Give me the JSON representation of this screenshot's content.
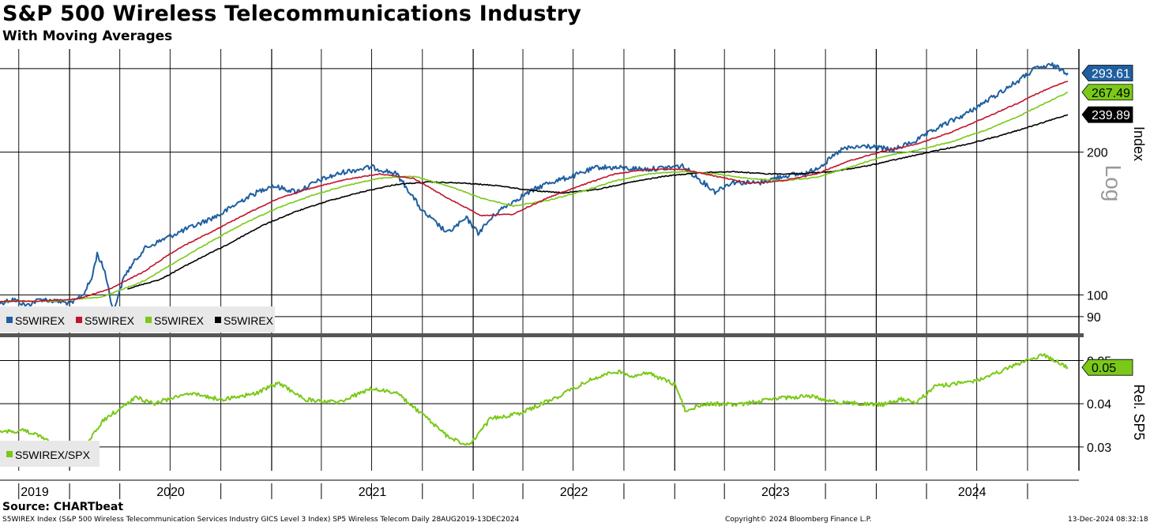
{
  "header": {
    "title": "S&P 500 Wireless Telecommunications Industry",
    "subtitle": "With Moving Averages"
  },
  "footer": {
    "source": "Source: CHARTbeat",
    "description": "S5WIREX Index (S&P 500 Wireless Telecommunication Services Industry GICS Level 3 Index) SP5 Wireless Telecom  Daily 28AUG2019-13DEC2024",
    "copyright": "Copyright© 2024 Bloomberg Finance L.P.",
    "timestamp": "13-Dec-2024 08:32:18"
  },
  "colors": {
    "price": "#1f5fa0",
    "ma_red": "#c0142c",
    "ma_green": "#7ac918",
    "ma_black": "#000000",
    "relative": "#7ac918"
  },
  "chart_data": [
    {
      "type": "line",
      "panel": "upper",
      "axis_label": "Index",
      "scale_label": "Log",
      "y_scale": "log",
      "ylim": [
        83,
        330
      ],
      "y_ticks": [
        90,
        100,
        200
      ],
      "x_ticks": [
        "2019",
        "2020",
        "2021",
        "2022",
        "2023",
        "2024"
      ],
      "x_range": [
        "2019-08-28",
        "2024-12-13"
      ],
      "grid": true,
      "legend": "bottom-left",
      "value_labels": [
        {
          "value": "293.61",
          "series": 0
        },
        {
          "value": "267.49",
          "series": 2
        },
        {
          "value": "239.89",
          "series": 3
        }
      ],
      "series": [
        {
          "name": "S5WIREX",
          "color_key": "price",
          "points": [
            [
              "2019-08-28",
              96
            ],
            [
              "2019-09-20",
              98
            ],
            [
              "2019-10-15",
              95
            ],
            [
              "2019-11-10",
              98
            ],
            [
              "2019-12-05",
              97
            ],
            [
              "2020-01-05",
              96
            ],
            [
              "2020-01-25",
              100
            ],
            [
              "2020-02-10",
              108
            ],
            [
              "2020-02-20",
              122
            ],
            [
              "2020-03-05",
              112
            ],
            [
              "2020-03-20",
              92
            ],
            [
              "2020-04-10",
              110
            ],
            [
              "2020-05-15",
              125
            ],
            [
              "2020-07-01",
              133
            ],
            [
              "2020-08-15",
              140
            ],
            [
              "2020-10-01",
              148
            ],
            [
              "2020-11-15",
              160
            ],
            [
              "2020-12-31",
              170
            ],
            [
              "2021-02-15",
              165
            ],
            [
              "2021-04-01",
              175
            ],
            [
              "2021-05-15",
              182
            ],
            [
              "2021-07-01",
              186
            ],
            [
              "2021-08-15",
              180
            ],
            [
              "2021-10-01",
              150
            ],
            [
              "2021-11-15",
              135
            ],
            [
              "2021-12-20",
              145
            ],
            [
              "2022-01-10",
              135
            ],
            [
              "2022-02-15",
              150
            ],
            [
              "2022-04-01",
              162
            ],
            [
              "2022-05-15",
              172
            ],
            [
              "2022-07-01",
              178
            ],
            [
              "2022-08-15",
              186
            ],
            [
              "2022-10-01",
              185
            ],
            [
              "2022-11-15",
              184
            ],
            [
              "2023-01-15",
              187
            ],
            [
              "2023-02-15",
              175
            ],
            [
              "2023-03-15",
              165
            ],
            [
              "2023-04-15",
              173
            ],
            [
              "2023-06-01",
              172
            ],
            [
              "2023-07-15",
              178
            ],
            [
              "2023-09-01",
              181
            ],
            [
              "2023-10-01",
              190
            ],
            [
              "2023-11-01",
              203
            ],
            [
              "2023-12-15",
              206
            ],
            [
              "2024-02-01",
              202
            ],
            [
              "2024-03-15",
              212
            ],
            [
              "2024-05-01",
              228
            ],
            [
              "2024-06-15",
              242
            ],
            [
              "2024-08-01",
              262
            ],
            [
              "2024-09-15",
              283
            ],
            [
              "2024-10-15",
              300
            ],
            [
              "2024-11-15",
              305
            ],
            [
              "2024-12-13",
              293.61
            ]
          ]
        },
        {
          "name": "S5WIREX",
          "color_key": "ma_red",
          "points": [
            [
              "2019-08-28",
              97
            ],
            [
              "2019-11-01",
              97
            ],
            [
              "2020-01-15",
              98
            ],
            [
              "2020-03-15",
              103
            ],
            [
              "2020-05-15",
              112
            ],
            [
              "2020-07-15",
              125
            ],
            [
              "2020-09-15",
              136
            ],
            [
              "2020-11-15",
              148
            ],
            [
              "2021-01-15",
              160
            ],
            [
              "2021-03-15",
              168
            ],
            [
              "2021-05-15",
              175
            ],
            [
              "2021-07-15",
              180
            ],
            [
              "2021-09-15",
              176
            ],
            [
              "2021-11-15",
              160
            ],
            [
              "2022-01-15",
              147
            ],
            [
              "2022-03-15",
              148
            ],
            [
              "2022-05-15",
              160
            ],
            [
              "2022-07-15",
              170
            ],
            [
              "2022-09-15",
              180
            ],
            [
              "2022-11-15",
              184
            ],
            [
              "2023-01-15",
              184
            ],
            [
              "2023-03-15",
              178
            ],
            [
              "2023-05-15",
              172
            ],
            [
              "2023-07-15",
              174
            ],
            [
              "2023-09-15",
              180
            ],
            [
              "2023-11-15",
              192
            ],
            [
              "2024-01-15",
              201
            ],
            [
              "2024-03-15",
              208
            ],
            [
              "2024-05-15",
              220
            ],
            [
              "2024-07-15",
              236
            ],
            [
              "2024-09-15",
              254
            ],
            [
              "2024-11-15",
              275
            ],
            [
              "2024-12-13",
              282
            ]
          ]
        },
        {
          "name": "S5WIREX",
          "color_key": "ma_green",
          "points": [
            [
              "2019-08-28",
              97
            ],
            [
              "2019-12-01",
              97
            ],
            [
              "2020-03-01",
              99
            ],
            [
              "2020-05-15",
              107
            ],
            [
              "2020-07-15",
              118
            ],
            [
              "2020-09-15",
              130
            ],
            [
              "2020-11-15",
              142
            ],
            [
              "2021-01-15",
              153
            ],
            [
              "2021-03-15",
              162
            ],
            [
              "2021-05-15",
              170
            ],
            [
              "2021-07-15",
              176
            ],
            [
              "2021-09-15",
              178
            ],
            [
              "2021-11-15",
              170
            ],
            [
              "2022-01-15",
              160
            ],
            [
              "2022-03-15",
              154
            ],
            [
              "2022-05-15",
              158
            ],
            [
              "2022-07-15",
              165
            ],
            [
              "2022-09-15",
              174
            ],
            [
              "2022-11-15",
              180
            ],
            [
              "2023-01-15",
              182
            ],
            [
              "2023-03-15",
              180
            ],
            [
              "2023-05-15",
              176
            ],
            [
              "2023-07-15",
              174
            ],
            [
              "2023-09-15",
              177
            ],
            [
              "2023-11-15",
              186
            ],
            [
              "2024-01-15",
              196
            ],
            [
              "2024-03-15",
              202
            ],
            [
              "2024-05-15",
              210
            ],
            [
              "2024-07-15",
              222
            ],
            [
              "2024-09-15",
              238
            ],
            [
              "2024-11-15",
              258
            ],
            [
              "2024-12-13",
              267.49
            ]
          ]
        },
        {
          "name": "S5WIREX",
          "color_key": "ma_black",
          "points": [
            [
              "2020-04-15",
              103
            ],
            [
              "2020-06-15",
              108
            ],
            [
              "2020-08-15",
              118
            ],
            [
              "2020-10-15",
              128
            ],
            [
              "2020-12-15",
              140
            ],
            [
              "2021-02-15",
              150
            ],
            [
              "2021-04-15",
              158
            ],
            [
              "2021-06-15",
              165
            ],
            [
              "2021-08-15",
              171
            ],
            [
              "2021-10-15",
              173
            ],
            [
              "2021-12-15",
              172
            ],
            [
              "2022-02-15",
              170
            ],
            [
              "2022-04-15",
              166
            ],
            [
              "2022-06-15",
              164
            ],
            [
              "2022-08-15",
              167
            ],
            [
              "2022-10-15",
              173
            ],
            [
              "2022-12-15",
              178
            ],
            [
              "2023-02-15",
              181
            ],
            [
              "2023-04-15",
              182
            ],
            [
              "2023-06-15",
              180
            ],
            [
              "2023-08-15",
              180
            ],
            [
              "2023-10-15",
              182
            ],
            [
              "2023-12-15",
              187
            ],
            [
              "2024-02-15",
              194
            ],
            [
              "2024-04-15",
              201
            ],
            [
              "2024-06-15",
              208
            ],
            [
              "2024-08-15",
              217
            ],
            [
              "2024-10-15",
              228
            ],
            [
              "2024-12-13",
              239.89
            ]
          ]
        }
      ]
    },
    {
      "type": "line",
      "panel": "lower",
      "axis_label": "Rel. SP5",
      "y_scale": "linear",
      "ylim": [
        0.0245,
        0.0552
      ],
      "y_ticks": [
        0.03,
        0.04,
        0.05
      ],
      "y_tick_labels": [
        "0.03",
        "0.04",
        "0.05"
      ],
      "x_ticks": [
        "2019",
        "2020",
        "2021",
        "2022",
        "2023",
        "2024"
      ],
      "grid": true,
      "legend": "bottom-left",
      "value_labels": [
        {
          "value": "0.05",
          "series": 0
        }
      ],
      "series": [
        {
          "name": "S5WIREX/SPX",
          "color_key": "relative",
          "points": [
            [
              "2019-08-28",
              0.0335
            ],
            [
              "2019-10-15",
              0.0338
            ],
            [
              "2019-12-01",
              0.031
            ],
            [
              "2020-01-05",
              0.03
            ],
            [
              "2020-02-01",
              0.0305
            ],
            [
              "2020-03-01",
              0.036
            ],
            [
              "2020-03-20",
              0.0378
            ],
            [
              "2020-05-01",
              0.0415
            ],
            [
              "2020-06-01",
              0.04
            ],
            [
              "2020-08-01",
              0.0425
            ],
            [
              "2020-10-01",
              0.041
            ],
            [
              "2020-12-01",
              0.0423
            ],
            [
              "2021-01-15",
              0.0448
            ],
            [
              "2021-03-01",
              0.041
            ],
            [
              "2021-05-01",
              0.0403
            ],
            [
              "2021-07-01",
              0.0435
            ],
            [
              "2021-08-15",
              0.0425
            ],
            [
              "2021-10-01",
              0.0375
            ],
            [
              "2021-11-15",
              0.0325
            ],
            [
              "2021-12-25",
              0.0302
            ],
            [
              "2022-02-01",
              0.0365
            ],
            [
              "2022-04-01",
              0.038
            ],
            [
              "2022-06-01",
              0.0415
            ],
            [
              "2022-08-01",
              0.0455
            ],
            [
              "2022-09-15",
              0.0475
            ],
            [
              "2022-10-15",
              0.0465
            ],
            [
              "2022-11-15",
              0.047
            ],
            [
              "2023-01-01",
              0.0445
            ],
            [
              "2023-01-20",
              0.0385
            ],
            [
              "2023-03-01",
              0.04
            ],
            [
              "2023-05-01",
              0.0398
            ],
            [
              "2023-07-01",
              0.0412
            ],
            [
              "2023-09-01",
              0.0418
            ],
            [
              "2023-10-15",
              0.0405
            ],
            [
              "2023-12-01",
              0.04
            ],
            [
              "2024-01-15",
              0.0398
            ],
            [
              "2024-02-15",
              0.041
            ],
            [
              "2024-03-15",
              0.0403
            ],
            [
              "2024-04-15",
              0.044
            ],
            [
              "2024-06-01",
              0.0447
            ],
            [
              "2024-07-15",
              0.0458
            ],
            [
              "2024-09-01",
              0.0485
            ],
            [
              "2024-10-01",
              0.0502
            ],
            [
              "2024-11-01",
              0.0512
            ],
            [
              "2024-12-13",
              0.0484
            ]
          ]
        }
      ]
    }
  ]
}
